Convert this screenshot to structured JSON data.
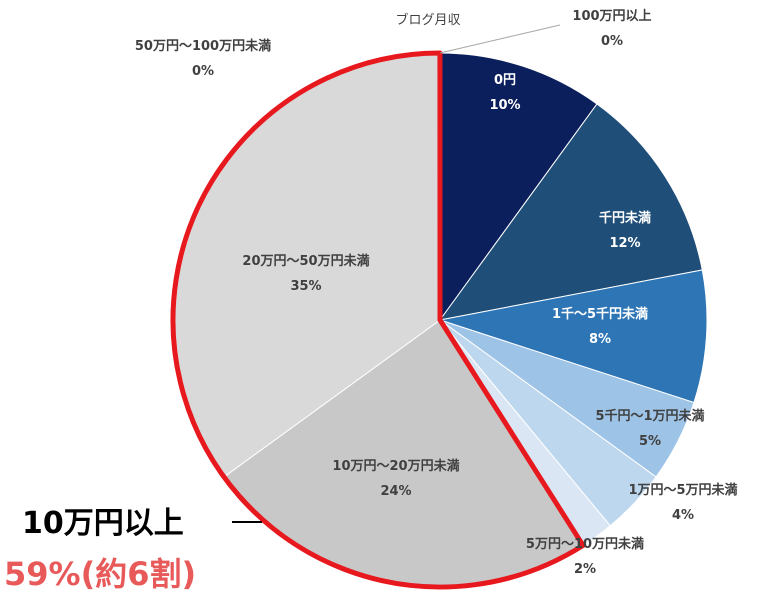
{
  "chart_data": {
    "type": "pie",
    "title": "ブログ月収",
    "slices": [
      {
        "label": "0円",
        "value": 10,
        "pct": "10%",
        "color": "#0a1f5c",
        "text": "light"
      },
      {
        "label": "千円未満",
        "value": 12,
        "pct": "12%",
        "color": "#1f4e79",
        "text": "light"
      },
      {
        "label": "1千～5千円未満",
        "value": 8,
        "pct": "8%",
        "color": "#2e75b6",
        "text": "light"
      },
      {
        "label": "5千円～1万円未満",
        "value": 5,
        "pct": "5%",
        "color": "#9dc3e6",
        "text": "dark"
      },
      {
        "label": "1万円～5万円未満",
        "value": 4,
        "pct": "4%",
        "color": "#bdd7ee",
        "text": "dark"
      },
      {
        "label": "5万円～10万円未満",
        "value": 2,
        "pct": "2%",
        "color": "#dae6f4",
        "text": "dark"
      },
      {
        "label": "10万円～20万円未満",
        "value": 24,
        "pct": "24%",
        "color": "#c8c8c8",
        "text": "dark"
      },
      {
        "label": "20万円～50万円未満",
        "value": 35,
        "pct": "35%",
        "color": "#d9d9d9",
        "text": "dark"
      },
      {
        "label": "50万円～100万円未満",
        "value": 0,
        "pct": "0%",
        "color": "#d9d9d9",
        "text": "dark"
      },
      {
        "label": "100万円以上",
        "value": 0,
        "pct": "0%",
        "color": "#d9d9d9",
        "text": "dark"
      }
    ],
    "highlight": {
      "slices": [
        "10万円～20万円未満",
        "20万円～50万円未満",
        "50万円～100万円未満",
        "100万円以上"
      ],
      "color": "#e8191e"
    }
  },
  "callout": {
    "line1": "10万円以上",
    "line2": "59%(約6割)"
  }
}
